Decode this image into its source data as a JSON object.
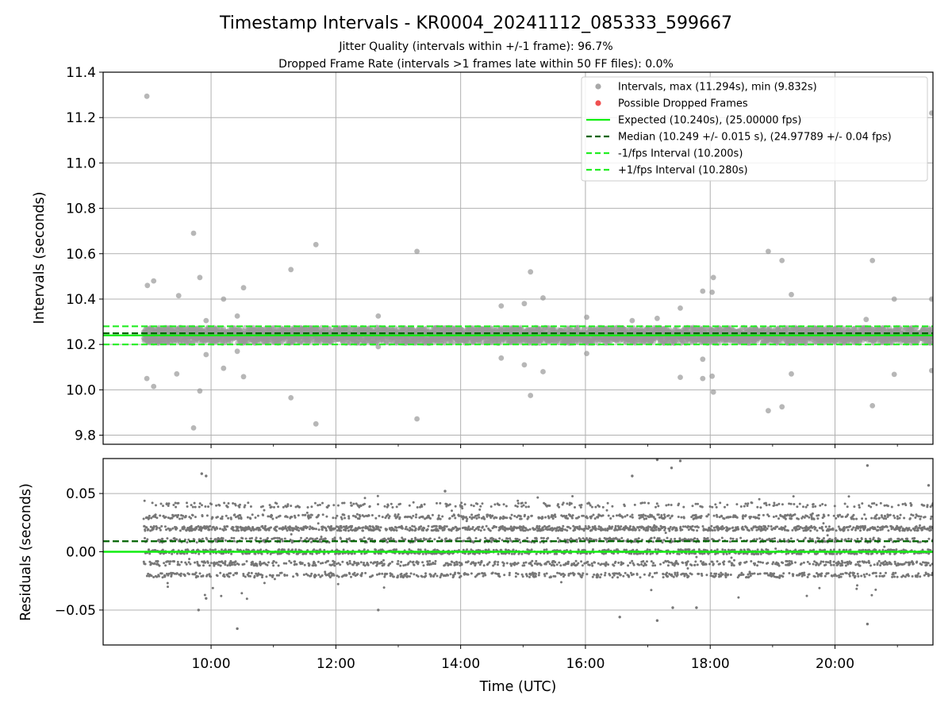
{
  "chart_data": {
    "title": "Timestamp Intervals - KR0004_20241112_085333_599667",
    "subtitle_lines": [
      "Jitter Quality (intervals within +/-1 frame): 96.7%",
      "Dropped Frame Rate (intervals >1 frames late within 50 FF files): 0.0%"
    ],
    "colors": {
      "interval_points": "#999999",
      "dropped": "#f05050",
      "expected": "#11ee11",
      "median": "#006400",
      "fps_interval": "#22ee22",
      "residual_points": "#777777",
      "grid": "#b0b0b0"
    },
    "top": {
      "type": "scatter",
      "ylabel": "Intervals (seconds)",
      "ylim": [
        9.76,
        11.4
      ],
      "yticks": [
        9.8,
        10.0,
        10.2,
        10.4,
        10.6,
        10.8,
        11.0,
        11.2,
        11.4
      ],
      "ytick_labels": [
        "9.8",
        "10.0",
        "10.2",
        "10.4",
        "10.6",
        "10.8",
        "11.0",
        "11.2",
        "11.4"
      ],
      "hlines": {
        "expected": 10.24,
        "median": 10.249,
        "minus_fps": 10.2,
        "plus_fps": 10.28
      },
      "legend": [
        {
          "kind": "dot-grey",
          "label": "Intervals, max (11.294s), min (9.832s)"
        },
        {
          "kind": "dot-red",
          "label": "Possible Dropped Frames"
        },
        {
          "kind": "line-expected",
          "label": "Expected (10.240s), (25.00000 fps)"
        },
        {
          "kind": "line-median",
          "label": "Median (10.249 +/- 0.015 s), (24.97789 +/- 0.04 fps)"
        },
        {
          "kind": "line-minus",
          "label": "-1/fps Interval (10.200s)"
        },
        {
          "kind": "line-plus",
          "label": "+1/fps Interval (10.280s)"
        }
      ],
      "outliers": [
        {
          "x": 8.97,
          "y": 11.294
        },
        {
          "x": 8.98,
          "y": 10.46
        },
        {
          "x": 9.08,
          "y": 10.48
        },
        {
          "x": 9.48,
          "y": 10.415
        },
        {
          "x": 9.72,
          "y": 10.69
        },
        {
          "x": 9.82,
          "y": 10.495
        },
        {
          "x": 9.92,
          "y": 10.305
        },
        {
          "x": 10.2,
          "y": 10.4
        },
        {
          "x": 10.42,
          "y": 10.325
        },
        {
          "x": 10.52,
          "y": 10.45
        },
        {
          "x": 11.28,
          "y": 10.53
        },
        {
          "x": 11.68,
          "y": 10.64
        },
        {
          "x": 12.68,
          "y": 10.325
        },
        {
          "x": 13.3,
          "y": 10.61
        },
        {
          "x": 14.65,
          "y": 10.37
        },
        {
          "x": 15.02,
          "y": 10.38
        },
        {
          "x": 15.12,
          "y": 10.52
        },
        {
          "x": 15.32,
          "y": 10.405
        },
        {
          "x": 16.02,
          "y": 10.32
        },
        {
          "x": 16.75,
          "y": 10.305
        },
        {
          "x": 17.15,
          "y": 10.315
        },
        {
          "x": 17.52,
          "y": 10.36
        },
        {
          "x": 17.88,
          "y": 10.435
        },
        {
          "x": 18.03,
          "y": 10.43
        },
        {
          "x": 18.05,
          "y": 10.495
        },
        {
          "x": 18.93,
          "y": 10.61
        },
        {
          "x": 19.15,
          "y": 10.57
        },
        {
          "x": 19.3,
          "y": 10.42
        },
        {
          "x": 20.5,
          "y": 10.31
        },
        {
          "x": 20.6,
          "y": 10.57
        },
        {
          "x": 20.95,
          "y": 10.4
        },
        {
          "x": 21.55,
          "y": 10.4
        },
        {
          "x": 21.55,
          "y": 11.22
        },
        {
          "x": 8.97,
          "y": 10.05
        },
        {
          "x": 9.08,
          "y": 10.015
        },
        {
          "x": 9.45,
          "y": 10.07
        },
        {
          "x": 9.72,
          "y": 9.832
        },
        {
          "x": 9.82,
          "y": 9.995
        },
        {
          "x": 9.92,
          "y": 10.155
        },
        {
          "x": 10.2,
          "y": 10.095
        },
        {
          "x": 10.42,
          "y": 10.17
        },
        {
          "x": 10.52,
          "y": 10.058
        },
        {
          "x": 11.28,
          "y": 9.965
        },
        {
          "x": 11.68,
          "y": 9.85
        },
        {
          "x": 12.68,
          "y": 10.19
        },
        {
          "x": 13.3,
          "y": 9.872
        },
        {
          "x": 14.65,
          "y": 10.14
        },
        {
          "x": 15.02,
          "y": 10.11
        },
        {
          "x": 15.12,
          "y": 9.975
        },
        {
          "x": 15.32,
          "y": 10.08
        },
        {
          "x": 16.02,
          "y": 10.16
        },
        {
          "x": 17.52,
          "y": 10.055
        },
        {
          "x": 17.88,
          "y": 10.135
        },
        {
          "x": 17.88,
          "y": 10.05
        },
        {
          "x": 18.03,
          "y": 10.06
        },
        {
          "x": 18.05,
          "y": 9.99
        },
        {
          "x": 18.93,
          "y": 9.908
        },
        {
          "x": 19.15,
          "y": 9.925
        },
        {
          "x": 19.3,
          "y": 10.07
        },
        {
          "x": 20.6,
          "y": 9.93
        },
        {
          "x": 20.95,
          "y": 10.068
        },
        {
          "x": 21.55,
          "y": 10.085
        }
      ]
    },
    "bottom": {
      "type": "scatter",
      "ylabel": "Residuals (seconds)",
      "ylim": [
        -0.08,
        0.08
      ],
      "yticks": [
        -0.05,
        0.0,
        0.05
      ],
      "ytick_labels": [
        "−0.05",
        "0.00",
        "0.05"
      ],
      "hlines": {
        "expected": 0.0,
        "median": 0.009
      },
      "outliers": [
        {
          "x": 9.8,
          "y": -0.05
        },
        {
          "x": 9.85,
          "y": 0.067
        },
        {
          "x": 9.92,
          "y": -0.04
        },
        {
          "x": 9.92,
          "y": 0.065
        },
        {
          "x": 10.42,
          "y": -0.066
        },
        {
          "x": 12.68,
          "y": -0.05
        },
        {
          "x": 13.75,
          "y": 0.052
        },
        {
          "x": 16.55,
          "y": -0.056
        },
        {
          "x": 16.75,
          "y": 0.065
        },
        {
          "x": 17.15,
          "y": -0.059
        },
        {
          "x": 17.15,
          "y": 0.079
        },
        {
          "x": 17.38,
          "y": 0.072
        },
        {
          "x": 17.4,
          "y": -0.048
        },
        {
          "x": 17.52,
          "y": 0.078
        },
        {
          "x": 17.78,
          "y": -0.048
        },
        {
          "x": 20.52,
          "y": 0.074
        },
        {
          "x": 20.52,
          "y": -0.062
        },
        {
          "x": 21.5,
          "y": 0.057
        }
      ]
    },
    "xaxis": {
      "xlabel": "Time (UTC)",
      "xlim": [
        8.27,
        21.57
      ],
      "data_start": 8.92,
      "ticks": [
        10,
        12,
        14,
        16,
        18,
        20
      ],
      "minor_ticks": [
        11,
        13,
        15,
        17,
        19,
        21
      ],
      "tick_labels": [
        "10:00",
        "12:00",
        "14:00",
        "16:00",
        "18:00",
        "20:00"
      ]
    },
    "sample_count": 4450
  }
}
